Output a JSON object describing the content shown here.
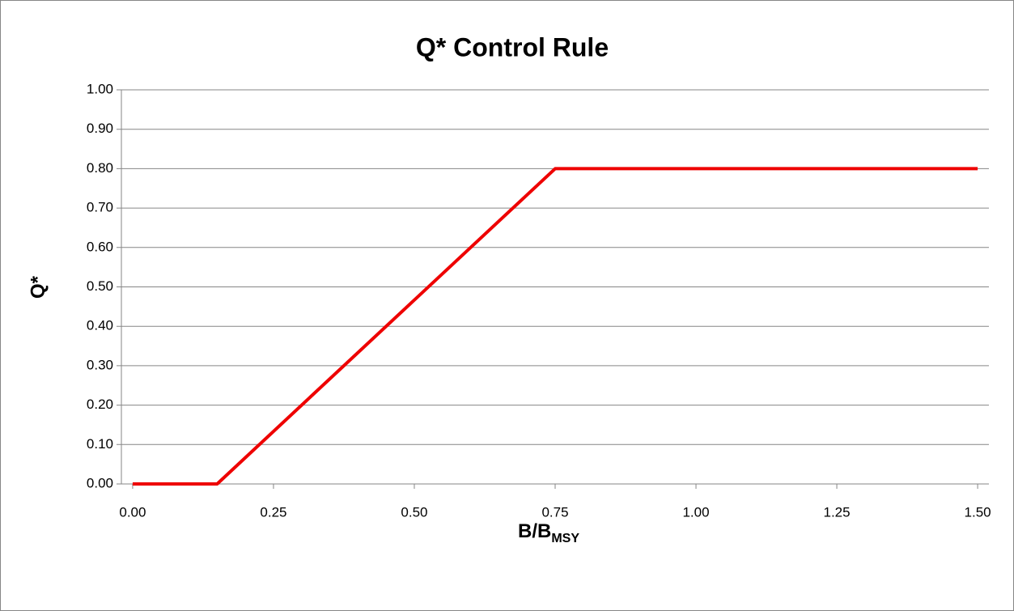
{
  "chart_data": {
    "type": "line",
    "title": "Q* Control Rule",
    "x_label": "B/B",
    "x_label_subscript": "MSY",
    "y_label": "Q*",
    "x": [
      0,
      0.15,
      0.75,
      1.5
    ],
    "series": [
      {
        "name": "Q*",
        "color": "#ee0000",
        "values": [
          0,
          0,
          0.8,
          0.8
        ]
      }
    ],
    "xlim": [
      -0.02,
      1.52
    ],
    "xticks": [
      {
        "value": 0,
        "label": "0.00"
      },
      {
        "value": 0.25,
        "label": "0.25"
      },
      {
        "value": 0.5,
        "label": "0.50"
      },
      {
        "value": 0.75,
        "label": "0.75"
      },
      {
        "value": 1,
        "label": "1.00"
      },
      {
        "value": 1.25,
        "label": "1.25"
      },
      {
        "value": 1.5,
        "label": "1.50"
      }
    ],
    "ylim": [
      0,
      1
    ],
    "yticks": [
      {
        "value": 0,
        "label": "0.00"
      },
      {
        "value": 0.1,
        "label": "0.10"
      },
      {
        "value": 0.2,
        "label": "0.20"
      },
      {
        "value": 0.3,
        "label": "0.30"
      },
      {
        "value": 0.4,
        "label": "0.40"
      },
      {
        "value": 0.5,
        "label": "0.50"
      },
      {
        "value": 0.6,
        "label": "0.60"
      },
      {
        "value": 0.7,
        "label": "0.70"
      },
      {
        "value": 0.8,
        "label": "0.80"
      },
      {
        "value": 0.9,
        "label": "0.90"
      },
      {
        "value": 1,
        "label": "1.00"
      }
    ],
    "grid": true
  }
}
